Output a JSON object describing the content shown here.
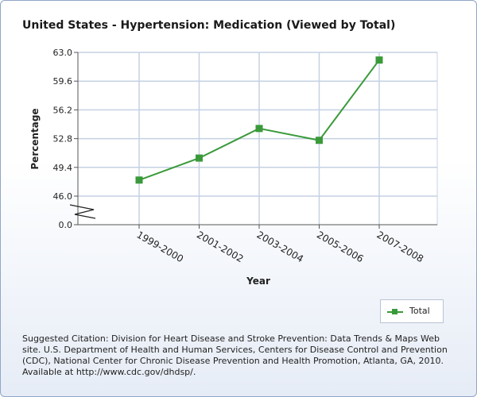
{
  "chart_data": {
    "type": "line",
    "title": "United States - Hypertension: Medication (Viewed by Total)",
    "xlabel": "Year",
    "ylabel": "Percentage",
    "categories": [
      "1999-2000",
      "2001-2002",
      "2003-2004",
      "2005-2006",
      "2007-2008"
    ],
    "series": [
      {
        "name": "Total",
        "color": "#3a9a3a",
        "values": [
          47.9,
          50.5,
          54.0,
          52.6,
          62.1
        ]
      }
    ],
    "yticks": [
      "0.0",
      "46.0",
      "49.4",
      "52.8",
      "56.2",
      "59.6",
      "63.0"
    ],
    "ylim": [
      46.0,
      63.0
    ],
    "axis_break": true,
    "grid": true,
    "legend": "bottom-right"
  },
  "legend": {
    "label": "Total"
  },
  "citation": "Suggested Citation: Division for Heart Disease and Stroke Prevention: Data Trends & Maps Web site. U.S. Department of Health and Human Services, Centers for Disease Control and Prevention (CDC), National Center for Chronic Disease Prevention and Health Promotion, Atlanta, GA, 2010. Available at http://www.cdc.gov/dhdsp/."
}
